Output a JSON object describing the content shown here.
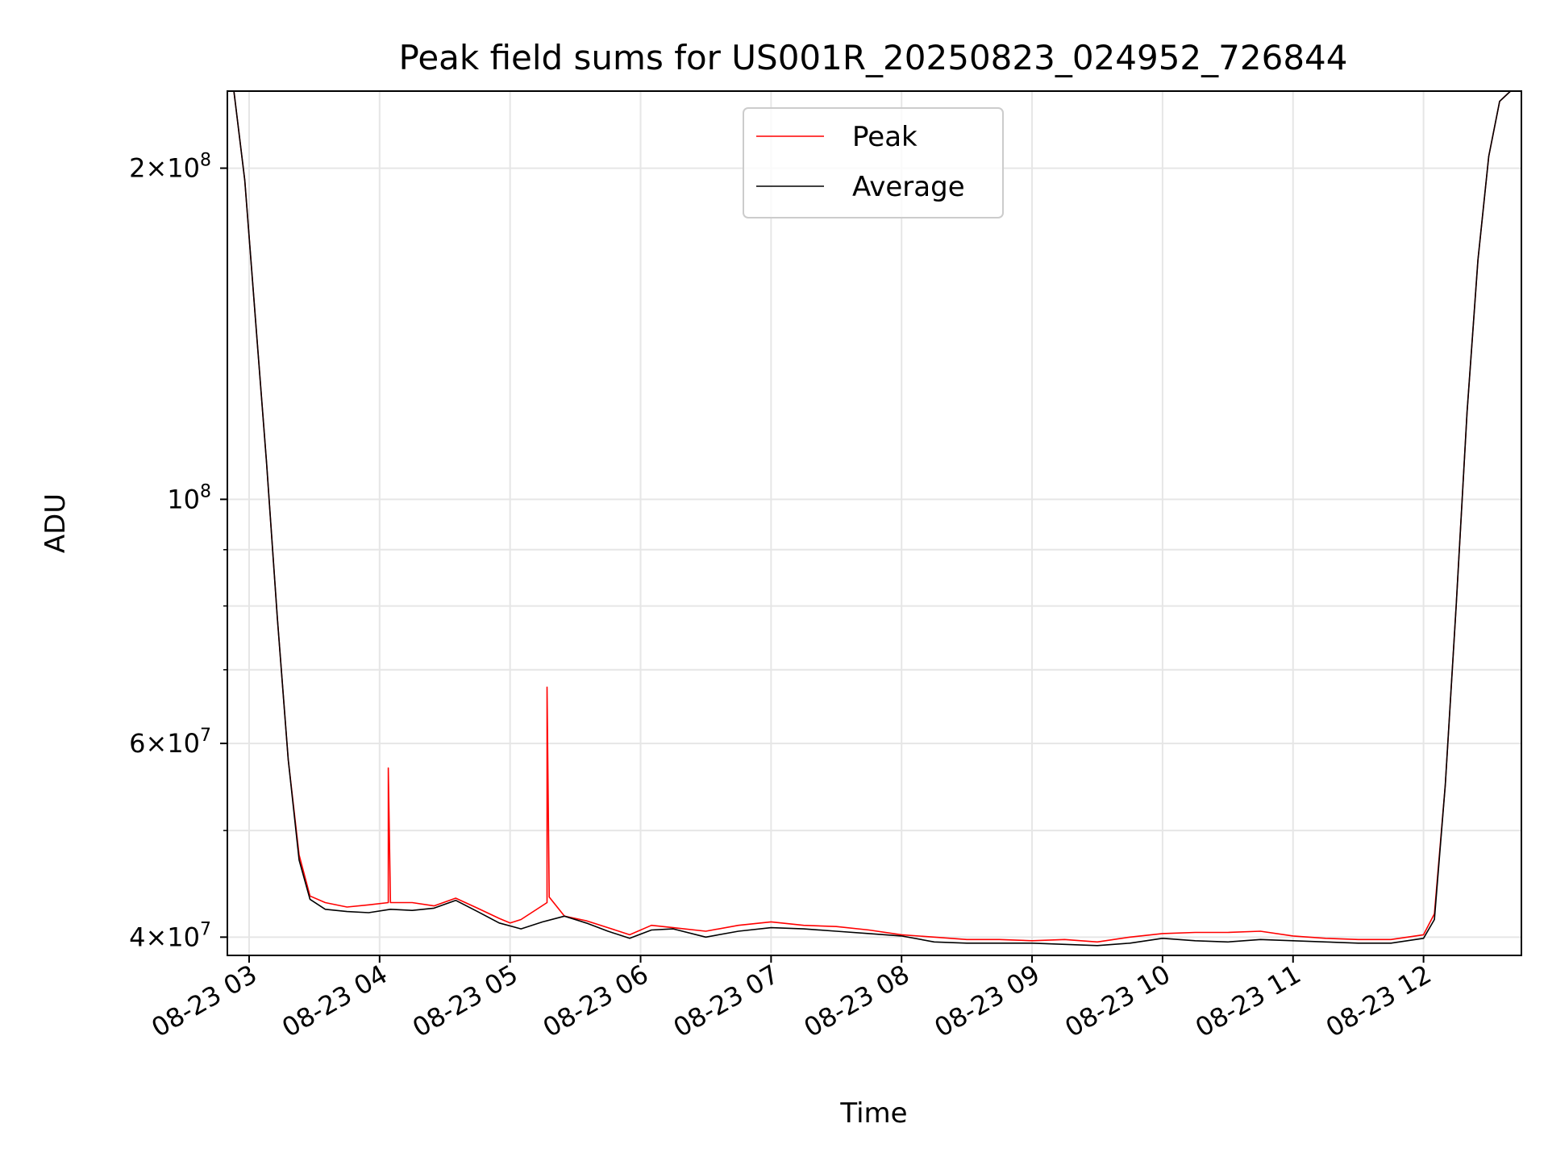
{
  "chart_data": {
    "type": "line",
    "title": "Peak field sums for US001R_20250823_024952_726844",
    "xlabel": "Time",
    "ylabel": "ADU",
    "x_axis": {
      "kind": "time",
      "range_start": "2025-08-23 02:50",
      "range_end": "2025-08-23 12:45",
      "tick_labels": [
        "08-23 03",
        "08-23 04",
        "08-23 05",
        "08-23 06",
        "08-23 07",
        "08-23 08",
        "08-23 09",
        "08-23 10",
        "08-23 11",
        "08-23 12"
      ],
      "tick_label_rotation": 30
    },
    "y_axis": {
      "scale": "log",
      "ylim": [
        38500000,
        235000000
      ],
      "major_ticks": [
        {
          "value": 40000000,
          "mantissa": "4",
          "exp": "7"
        },
        {
          "value": 60000000,
          "mantissa": "6",
          "exp": "7"
        },
        {
          "value": 100000000,
          "mantissa": "",
          "exp": "8"
        },
        {
          "value": 200000000,
          "mantissa": "2",
          "exp": "8"
        }
      ],
      "minor_ticks": [
        50000000,
        70000000,
        80000000,
        90000000
      ]
    },
    "grid": true,
    "legend": {
      "placement": "upper-center"
    },
    "series": [
      {
        "name": "Peak",
        "color": "#ff0000",
        "x": [
          "2025-08-23 02:50",
          "2025-08-23 02:53",
          "2025-08-23 02:58",
          "2025-08-23 03:03",
          "2025-08-23 03:08",
          "2025-08-23 03:13",
          "2025-08-23 03:18",
          "2025-08-23 03:23",
          "2025-08-23 03:28",
          "2025-08-23 03:35",
          "2025-08-23 03:45",
          "2025-08-23 03:55",
          "2025-08-23 04:04",
          "2025-08-23 04:04",
          "2025-08-23 04:05",
          "2025-08-23 04:15",
          "2025-08-23 04:25",
          "2025-08-23 04:35",
          "2025-08-23 04:45",
          "2025-08-23 04:55",
          "2025-08-23 05:00",
          "2025-08-23 05:05",
          "2025-08-23 05:17",
          "2025-08-23 05:17",
          "2025-08-23 05:18",
          "2025-08-23 05:25",
          "2025-08-23 05:35",
          "2025-08-23 05:45",
          "2025-08-23 05:55",
          "2025-08-23 06:05",
          "2025-08-23 06:15",
          "2025-08-23 06:30",
          "2025-08-23 06:45",
          "2025-08-23 07:00",
          "2025-08-23 07:15",
          "2025-08-23 07:30",
          "2025-08-23 07:45",
          "2025-08-23 08:00",
          "2025-08-23 08:15",
          "2025-08-23 08:30",
          "2025-08-23 08:45",
          "2025-08-23 09:00",
          "2025-08-23 09:15",
          "2025-08-23 09:30",
          "2025-08-23 09:45",
          "2025-08-23 10:00",
          "2025-08-23 10:15",
          "2025-08-23 10:30",
          "2025-08-23 10:45",
          "2025-08-23 11:00",
          "2025-08-23 11:15",
          "2025-08-23 11:30",
          "2025-08-23 11:45",
          "2025-08-23 12:00",
          "2025-08-23 12:05",
          "2025-08-23 12:10",
          "2025-08-23 12:15",
          "2025-08-23 12:20",
          "2025-08-23 12:25",
          "2025-08-23 12:30",
          "2025-08-23 12:35",
          "2025-08-23 12:40",
          "2025-08-23 12:45"
        ],
        "y": [
          235000000,
          235000000,
          195000000,
          145000000,
          108000000,
          78000000,
          58000000,
          47500000,
          43600000,
          43000000,
          42600000,
          42800000,
          43000000,
          57000000,
          43000000,
          43000000,
          42700000,
          43400000,
          42500000,
          41600000,
          41200000,
          41500000,
          43000000,
          67500000,
          43500000,
          41800000,
          41400000,
          40800000,
          40200000,
          41000000,
          40800000,
          40500000,
          41000000,
          41300000,
          41000000,
          40900000,
          40600000,
          40200000,
          40000000,
          39800000,
          39800000,
          39700000,
          39800000,
          39600000,
          40000000,
          40300000,
          40400000,
          40400000,
          40500000,
          40100000,
          39900000,
          39800000,
          39800000,
          40200000,
          42000000,
          55000000,
          80000000,
          120000000,
          165000000,
          205000000,
          230000000,
          235000000,
          235000000
        ]
      },
      {
        "name": "Average",
        "color": "#000000",
        "x": [
          "2025-08-23 02:50",
          "2025-08-23 02:53",
          "2025-08-23 02:58",
          "2025-08-23 03:03",
          "2025-08-23 03:08",
          "2025-08-23 03:13",
          "2025-08-23 03:18",
          "2025-08-23 03:23",
          "2025-08-23 03:28",
          "2025-08-23 03:35",
          "2025-08-23 03:45",
          "2025-08-23 03:55",
          "2025-08-23 04:05",
          "2025-08-23 04:15",
          "2025-08-23 04:25",
          "2025-08-23 04:35",
          "2025-08-23 04:45",
          "2025-08-23 04:55",
          "2025-08-23 05:05",
          "2025-08-23 05:15",
          "2025-08-23 05:25",
          "2025-08-23 05:35",
          "2025-08-23 05:45",
          "2025-08-23 05:55",
          "2025-08-23 06:05",
          "2025-08-23 06:15",
          "2025-08-23 06:30",
          "2025-08-23 06:45",
          "2025-08-23 07:00",
          "2025-08-23 07:15",
          "2025-08-23 07:30",
          "2025-08-23 07:45",
          "2025-08-23 08:00",
          "2025-08-23 08:15",
          "2025-08-23 08:30",
          "2025-08-23 08:45",
          "2025-08-23 09:00",
          "2025-08-23 09:15",
          "2025-08-23 09:30",
          "2025-08-23 09:45",
          "2025-08-23 10:00",
          "2025-08-23 10:15",
          "2025-08-23 10:30",
          "2025-08-23 10:45",
          "2025-08-23 11:00",
          "2025-08-23 11:15",
          "2025-08-23 11:30",
          "2025-08-23 11:45",
          "2025-08-23 12:00",
          "2025-08-23 12:05",
          "2025-08-23 12:10",
          "2025-08-23 12:15",
          "2025-08-23 12:20",
          "2025-08-23 12:25",
          "2025-08-23 12:30",
          "2025-08-23 12:35",
          "2025-08-23 12:40",
          "2025-08-23 12:45"
        ],
        "y": [
          235000000,
          235000000,
          195000000,
          145000000,
          108000000,
          78000000,
          58000000,
          47000000,
          43300000,
          42400000,
          42200000,
          42100000,
          42400000,
          42300000,
          42500000,
          43200000,
          42200000,
          41200000,
          40700000,
          41300000,
          41800000,
          41200000,
          40500000,
          39900000,
          40600000,
          40700000,
          40000000,
          40500000,
          40800000,
          40700000,
          40500000,
          40300000,
          40100000,
          39600000,
          39500000,
          39500000,
          39500000,
          39400000,
          39300000,
          39500000,
          39900000,
          39700000,
          39600000,
          39800000,
          39700000,
          39600000,
          39500000,
          39500000,
          39900000,
          41500000,
          55000000,
          80000000,
          120000000,
          165000000,
          205000000,
          230000000,
          235000000,
          235000000
        ]
      }
    ]
  }
}
